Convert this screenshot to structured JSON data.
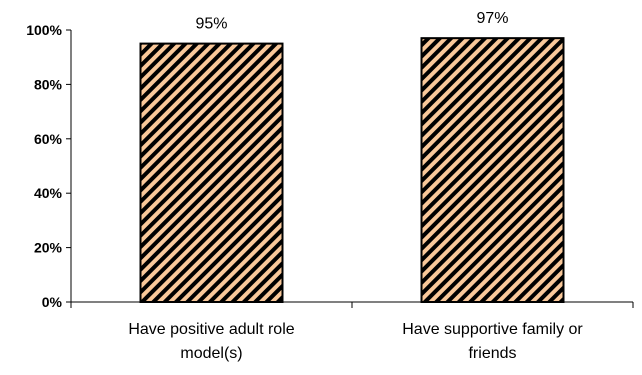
{
  "chart_data": {
    "type": "bar",
    "categories": [
      [
        "Have positive adult role",
        "model(s)"
      ],
      [
        "Have supportive family or",
        "friends"
      ]
    ],
    "values": [
      95,
      97
    ],
    "data_labels": [
      "95%",
      "97%"
    ],
    "title": "",
    "xlabel": "",
    "ylabel": "",
    "ylim": [
      0,
      100
    ],
    "yticks": [
      0,
      20,
      40,
      60,
      80,
      100
    ],
    "ytick_labels": [
      "0%",
      "20%",
      "40%",
      "60%",
      "80%",
      "100%"
    ],
    "grid": false,
    "legend": "none",
    "bar_fill_color": "#f9c89a",
    "bar_hatch_color": "#000000"
  }
}
